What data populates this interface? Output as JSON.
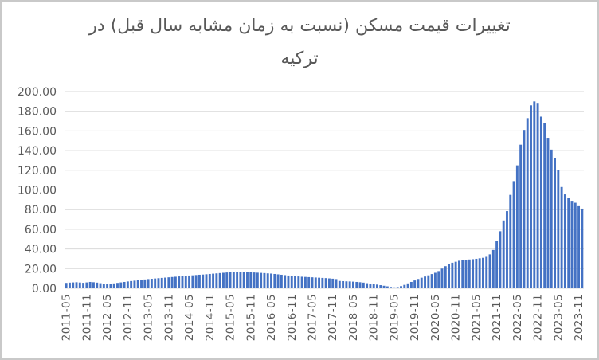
{
  "title": {
    "full": "تغییرات قیمت مسکن (نسبت به زمان مشابه سال قبل) در ترکیه",
    "line1": "تغییرات قیمت مسکن (نسبت به زمان مشابه سال قبل) در",
    "line2": "ترکیه"
  },
  "colors": {
    "bar": "#4472C4",
    "gridline": "#D9D9D9",
    "axis_line": "#D9D9D9",
    "tick_label": "#595959",
    "title": "#595959",
    "border": "#C9C9C9",
    "background": "#FFFFFF"
  },
  "chart_data": {
    "type": "bar",
    "title": "تغییرات قیمت مسکن (نسبت به زمان مشابه سال قبل) در ترکیه",
    "xlabel": "",
    "ylabel": "",
    "ylim": [
      0,
      200
    ],
    "grid": true,
    "legend": false,
    "ytick_labels": [
      "0.00",
      "20.00",
      "40.00",
      "60.00",
      "80.00",
      "100.00",
      "120.00",
      "140.00",
      "160.00",
      "180.00",
      "200.00"
    ],
    "xtick_labels": [
      "2011-05",
      "2011-11",
      "2012-05",
      "2012-11",
      "2013-05",
      "2013-11",
      "2014-05",
      "2014-11",
      "2015-05",
      "2015-11",
      "2016-05",
      "2016-11",
      "2017-05",
      "2017-11",
      "2018-05",
      "2018-11",
      "2019-05",
      "2019-11",
      "2020-05",
      "2020-11",
      "2021-05",
      "2021-11",
      "2022-05",
      "2022-11",
      "2023-05",
      "2023-11"
    ],
    "x": [
      "2011-05",
      "2011-06",
      "2011-07",
      "2011-08",
      "2011-09",
      "2011-10",
      "2011-11",
      "2011-12",
      "2012-01",
      "2012-02",
      "2012-03",
      "2012-04",
      "2012-05",
      "2012-06",
      "2012-07",
      "2012-08",
      "2012-09",
      "2012-10",
      "2012-11",
      "2012-12",
      "2013-01",
      "2013-02",
      "2013-03",
      "2013-04",
      "2013-05",
      "2013-06",
      "2013-07",
      "2013-08",
      "2013-09",
      "2013-10",
      "2013-11",
      "2013-12",
      "2014-01",
      "2014-02",
      "2014-03",
      "2014-04",
      "2014-05",
      "2014-06",
      "2014-07",
      "2014-08",
      "2014-09",
      "2014-10",
      "2014-11",
      "2014-12",
      "2015-01",
      "2015-02",
      "2015-03",
      "2015-04",
      "2015-05",
      "2015-06",
      "2015-07",
      "2015-08",
      "2015-09",
      "2015-10",
      "2015-11",
      "2015-12",
      "2016-01",
      "2016-02",
      "2016-03",
      "2016-04",
      "2016-05",
      "2016-06",
      "2016-07",
      "2016-08",
      "2016-09",
      "2016-10",
      "2016-11",
      "2016-12",
      "2017-01",
      "2017-02",
      "2017-03",
      "2017-04",
      "2017-05",
      "2017-06",
      "2017-07",
      "2017-08",
      "2017-09",
      "2017-10",
      "2017-11",
      "2017-12",
      "2018-01",
      "2018-02",
      "2018-03",
      "2018-04",
      "2018-05",
      "2018-06",
      "2018-07",
      "2018-08",
      "2018-09",
      "2018-10",
      "2018-11",
      "2018-12",
      "2019-01",
      "2019-02",
      "2019-03",
      "2019-04",
      "2019-05",
      "2019-06",
      "2019-07",
      "2019-08",
      "2019-09",
      "2019-10",
      "2019-11",
      "2019-12",
      "2020-01",
      "2020-02",
      "2020-03",
      "2020-04",
      "2020-05",
      "2020-06",
      "2020-07",
      "2020-08",
      "2020-09",
      "2020-10",
      "2020-11",
      "2020-12",
      "2021-01",
      "2021-02",
      "2021-03",
      "2021-04",
      "2021-05",
      "2021-06",
      "2021-07",
      "2021-08",
      "2021-09",
      "2021-10",
      "2021-11",
      "2021-12",
      "2022-01",
      "2022-02",
      "2022-03",
      "2022-04",
      "2022-05",
      "2022-06",
      "2022-07",
      "2022-08",
      "2022-09",
      "2022-10",
      "2022-11",
      "2022-12",
      "2023-01",
      "2023-02",
      "2023-03",
      "2023-04",
      "2023-05",
      "2023-06",
      "2023-07",
      "2023-08",
      "2023-09",
      "2023-10",
      "2023-11",
      "2023-12"
    ],
    "values": [
      5.5,
      5.8,
      6.0,
      6.2,
      5.9,
      5.6,
      6.0,
      6.5,
      6.2,
      5.8,
      5.2,
      4.8,
      4.5,
      4.6,
      5.0,
      5.5,
      6.0,
      6.5,
      7.0,
      7.4,
      7.8,
      8.2,
      8.6,
      9.0,
      9.4,
      9.7,
      10.0,
      10.3,
      10.6,
      10.9,
      11.2,
      11.5,
      11.8,
      12.1,
      12.4,
      12.7,
      13.0,
      13.2,
      13.5,
      13.8,
      14.0,
      14.3,
      14.6,
      14.9,
      15.2,
      15.5,
      15.8,
      16.1,
      16.4,
      16.8,
      17.0,
      16.9,
      16.7,
      16.5,
      16.3,
      16.1,
      15.9,
      15.7,
      15.5,
      15.2,
      15.0,
      14.6,
      14.2,
      13.8,
      13.4,
      13.0,
      12.7,
      12.4,
      12.1,
      11.8,
      11.6,
      11.4,
      11.2,
      11.0,
      10.8,
      10.6,
      10.4,
      10.1,
      9.8,
      9.4,
      7.5,
      7.3,
      7.1,
      7.0,
      6.8,
      6.5,
      6.2,
      5.8,
      5.2,
      4.6,
      4.2,
      3.8,
      3.2,
      2.6,
      2.0,
      1.4,
      1.0,
      1.3,
      2.2,
      3.5,
      5.0,
      6.5,
      8.0,
      9.5,
      10.8,
      12.0,
      13.2,
      14.5,
      15.8,
      17.5,
      20.0,
      22.5,
      24.5,
      26.0,
      27.0,
      28.0,
      28.5,
      29.0,
      29.3,
      29.6,
      30.0,
      30.5,
      31.0,
      32.0,
      34.5,
      39.0,
      48.5,
      58.0,
      69.0,
      78.5,
      95.0,
      109.0,
      125.0,
      146.0,
      161.0,
      173.0,
      186.0,
      190.0,
      188.5,
      174.5,
      167.8,
      153.0,
      141.0,
      132.0,
      120.0,
      103.0,
      95.5,
      92.0,
      89.0,
      87.0,
      83.5,
      81.0
    ]
  }
}
